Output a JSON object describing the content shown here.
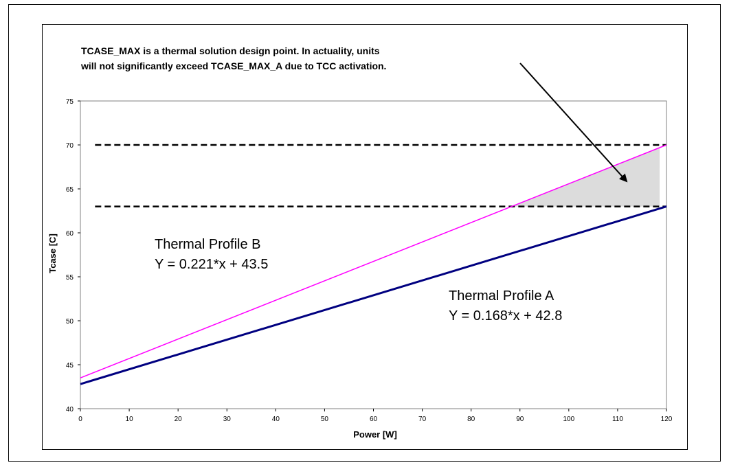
{
  "chart_data": {
    "type": "line",
    "xlabel": "Power [W]",
    "ylabel": "Tcase [C]",
    "xlim": [
      0,
      120
    ],
    "ylim": [
      40,
      75
    ],
    "x_ticks": [
      0,
      10,
      20,
      30,
      40,
      50,
      60,
      70,
      80,
      90,
      100,
      110,
      120
    ],
    "y_ticks": [
      40,
      45,
      50,
      55,
      60,
      65,
      70,
      75
    ],
    "grid": false,
    "annotation": {
      "lines": [
        "TCASE_MAX is a thermal solution design point. In actuality, units",
        "will not significantly exceed TCASE_MAX_A due to TCC activation."
      ]
    },
    "series": [
      {
        "label_lines": [
          "Thermal Profile B",
          "Y = 0.221*x + 43.5"
        ],
        "color": "#ff00ff",
        "x": [
          0,
          120
        ],
        "y": [
          43.5,
          70.0
        ]
      },
      {
        "label_lines": [
          "Thermal Profile A",
          "Y = 0.168*x + 42.8"
        ],
        "color": "#000080",
        "x": [
          0,
          120
        ],
        "y": [
          42.8,
          63.0
        ]
      }
    ],
    "reference_lines": [
      {
        "y": 70.0,
        "x_range": [
          3,
          120
        ],
        "style": "dashed",
        "color": "#000000"
      },
      {
        "y": 63.0,
        "x_range": [
          3,
          120
        ],
        "style": "dashed",
        "color": "#000000"
      }
    ],
    "shaded_region": {
      "description_color": "#d9d9d9",
      "bounded_by": "Thermal Profile B above y=63.0 up to x=118.6"
    }
  }
}
